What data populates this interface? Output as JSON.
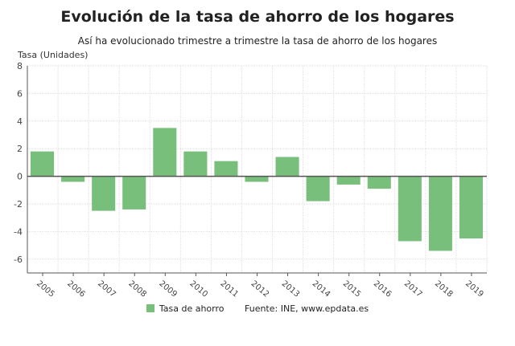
{
  "chart_data": {
    "type": "bar",
    "title": "Evolución de la tasa de ahorro de los hogares",
    "subtitle": "Así ha evolucionado trimestre a trimestre la tasa de ahorro de los hogares",
    "ylabel": "Tasa (Unidades)",
    "xlabel": "",
    "categories": [
      "2005",
      "2006",
      "2007",
      "2008",
      "2009",
      "2010",
      "2011",
      "2012",
      "2013",
      "2014",
      "2015",
      "2016",
      "2017",
      "2018",
      "2019"
    ],
    "series": [
      {
        "name": "Tasa de ahorro",
        "values": [
          1.8,
          -0.4,
          -2.5,
          -2.4,
          3.5,
          1.8,
          1.1,
          -0.4,
          1.4,
          -1.8,
          -0.6,
          -0.9,
          -4.7,
          -5.4,
          -4.5
        ]
      }
    ],
    "ylim": [
      -7,
      8
    ],
    "yticks": [
      8,
      6,
      4,
      2,
      0,
      -2,
      -4,
      -6
    ],
    "grid": true,
    "legend": "bottom",
    "source": "Fuente: INE, www.epdata.es",
    "colors": {
      "bar": "#77bf7a",
      "grid": "#dddddd",
      "axis": "#555555"
    }
  }
}
